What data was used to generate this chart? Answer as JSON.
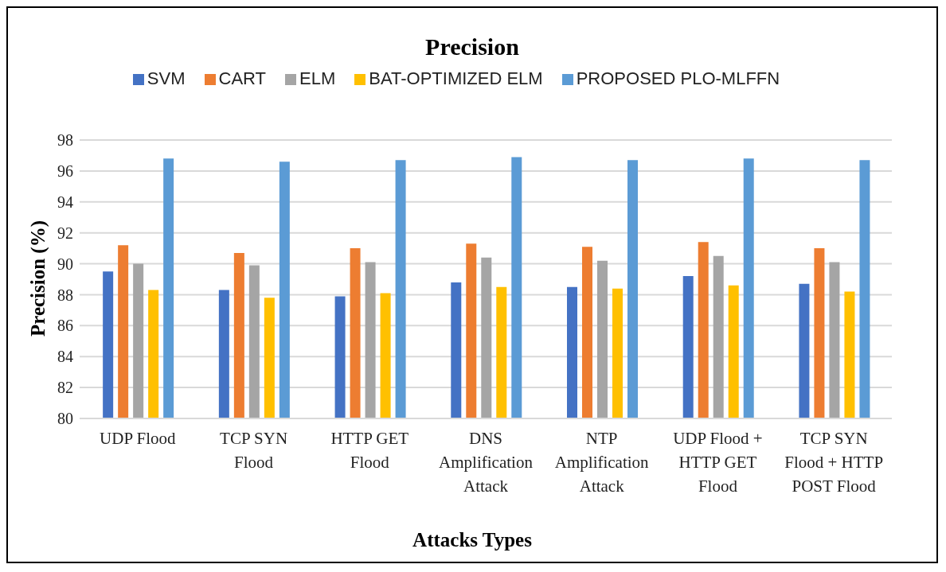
{
  "chart_data": {
    "type": "bar",
    "title": "Precision",
    "xlabel": "Attacks Types",
    "ylabel": "Precision (%)",
    "categories": [
      "UDP Flood",
      "TCP SYN Flood",
      "HTTP GET Flood",
      "DNS Amplification Attack",
      "NTP Amplification Attack",
      "UDP Flood + HTTP GET Flood",
      "TCP SYN Flood + HTTP POST Flood"
    ],
    "series": [
      {
        "name": "SVM",
        "color": "#4472c4",
        "values": [
          89.5,
          88.3,
          87.9,
          88.8,
          88.5,
          89.2,
          88.7
        ]
      },
      {
        "name": "CART",
        "color": "#ed7d31",
        "values": [
          91.2,
          90.7,
          91.0,
          91.3,
          91.1,
          91.4,
          91.0
        ]
      },
      {
        "name": "ELM",
        "color": "#a5a5a5",
        "values": [
          90.0,
          89.9,
          90.1,
          90.4,
          90.2,
          90.5,
          90.1
        ]
      },
      {
        "name": "BAT-OPTIMIZED ELM",
        "color": "#ffc000",
        "values": [
          88.3,
          87.8,
          88.1,
          88.5,
          88.4,
          88.6,
          88.2
        ]
      },
      {
        "name": "PROPOSED PLO-MLFFN",
        "color": "#5b9bd5",
        "values": [
          96.8,
          96.6,
          96.7,
          96.9,
          96.7,
          96.8,
          96.7
        ]
      }
    ],
    "ylim": [
      80,
      98
    ],
    "yticks": [
      80,
      82,
      84,
      86,
      88,
      90,
      92,
      94,
      96,
      98
    ],
    "grid": "y",
    "legend": "top"
  }
}
